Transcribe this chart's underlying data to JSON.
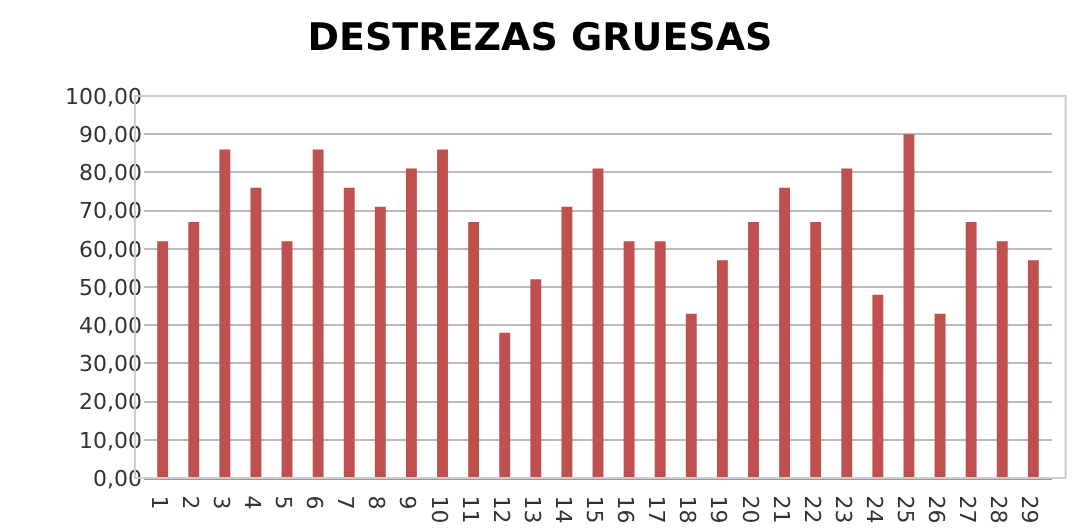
{
  "chart_data": {
    "type": "bar",
    "title": "DESTREZAS GRUESAS",
    "categories": [
      "1",
      "2",
      "3",
      "4",
      "5",
      "6",
      "7",
      "8",
      "9",
      "10",
      "11",
      "12",
      "13",
      "14",
      "15",
      "16",
      "17",
      "18",
      "19",
      "20",
      "21",
      "22",
      "23",
      "24",
      "25",
      "26",
      "27",
      "28",
      "29"
    ],
    "values": [
      62,
      67,
      86,
      76,
      62,
      86,
      76,
      71,
      81,
      86,
      67,
      38,
      52,
      71,
      81,
      62,
      62,
      43,
      57,
      67,
      76,
      67,
      81,
      48,
      90,
      43,
      67,
      62,
      57
    ],
    "color": "#c0504d",
    "ylim": [
      0,
      100
    ],
    "yticks": [
      {
        "value": 0,
        "label": "0,00"
      },
      {
        "value": 10,
        "label": "10,00"
      },
      {
        "value": 20,
        "label": "20,00"
      },
      {
        "value": 30,
        "label": "30,00"
      },
      {
        "value": 40,
        "label": "40,00"
      },
      {
        "value": 50,
        "label": "50,00"
      },
      {
        "value": 60,
        "label": "60,00"
      },
      {
        "value": 70,
        "label": "70,00"
      },
      {
        "value": 80,
        "label": "80,00"
      },
      {
        "value": 90,
        "label": "90,00"
      },
      {
        "value": 100,
        "label": "100,00"
      }
    ],
    "grid": true,
    "legend": false
  }
}
